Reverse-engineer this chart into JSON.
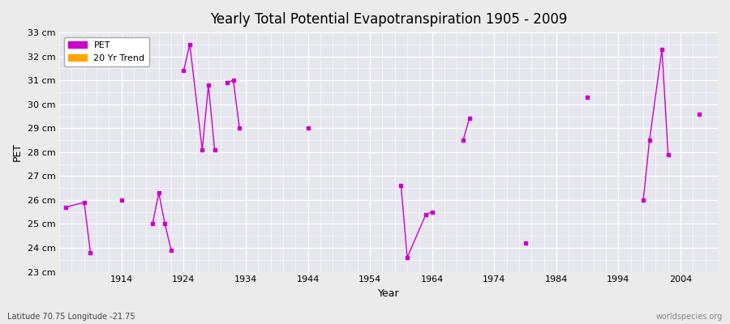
{
  "title": "Yearly Total Potential Evapotranspiration 1905 - 2009",
  "xlabel": "Year",
  "ylabel": "PET",
  "subtitle": "Latitude 70.75 Longitude -21.75",
  "watermark": "worldspecies.org",
  "segments": [
    {
      "years": [
        1905,
        1908,
        1909
      ],
      "values": [
        25.7,
        25.9,
        23.8
      ]
    },
    {
      "years": [
        1914
      ],
      "values": [
        26.0
      ]
    },
    {
      "years": [
        1919,
        1920,
        1921,
        1922
      ],
      "values": [
        25.0,
        26.3,
        25.0,
        23.9
      ]
    },
    {
      "years": [
        1924,
        1925,
        1927,
        1928,
        1929
      ],
      "values": [
        31.4,
        32.5,
        28.1,
        30.8,
        28.1
      ]
    },
    {
      "years": [
        1931,
        1932,
        1933
      ],
      "values": [
        30.9,
        31.0,
        29.0
      ]
    },
    {
      "years": [
        1944
      ],
      "values": [
        29.0
      ]
    },
    {
      "years": [
        1959,
        1960,
        1963,
        1964
      ],
      "values": [
        26.6,
        23.6,
        25.4,
        25.5
      ]
    },
    {
      "years": [
        1969,
        1970
      ],
      "values": [
        28.5,
        29.4
      ]
    },
    {
      "years": [
        1979
      ],
      "values": [
        24.2
      ]
    },
    {
      "years": [
        1989
      ],
      "values": [
        30.3
      ]
    },
    {
      "years": [
        1998,
        1999,
        2001,
        2002
      ],
      "values": [
        26.0,
        28.5,
        32.3,
        27.9
      ]
    },
    {
      "years": [
        2007
      ],
      "values": [
        29.6
      ]
    }
  ],
  "pet_color": "#CC00CC",
  "trend_color": "#FFA500",
  "bg_color": "#EBEBEB",
  "plot_bg_color": "#E6E6EE",
  "grid_color": "#FFFFFF",
  "ylim_min": 23,
  "ylim_max": 33,
  "xlim_min": 1904,
  "xlim_max": 2010,
  "ytick_labels": [
    "23 cm",
    "24 cm",
    "25 cm",
    "26 cm",
    "27 cm",
    "28 cm",
    "29 cm",
    "30 cm",
    "31 cm",
    "32 cm",
    "33 cm"
  ],
  "ytick_values": [
    23,
    24,
    25,
    26,
    27,
    28,
    29,
    30,
    31,
    32,
    33
  ],
  "xtick_values": [
    1914,
    1924,
    1934,
    1944,
    1954,
    1964,
    1974,
    1984,
    1994,
    2004
  ]
}
